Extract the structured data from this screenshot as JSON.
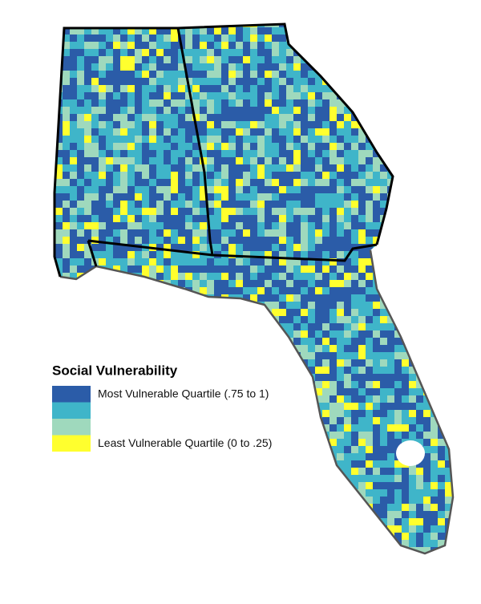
{
  "legend": {
    "title": "Social Vulnerability",
    "items": [
      {
        "color": "#2b5ca8",
        "label": "Most Vulnerable Quartile (.75 to 1)"
      },
      {
        "color": "#3fb5c9"
      },
      {
        "color": "#9fd9bd"
      },
      {
        "color": "#ffff2e",
        "label": "Least Vulnerable Quartile (0 to .25)"
      }
    ]
  }
}
